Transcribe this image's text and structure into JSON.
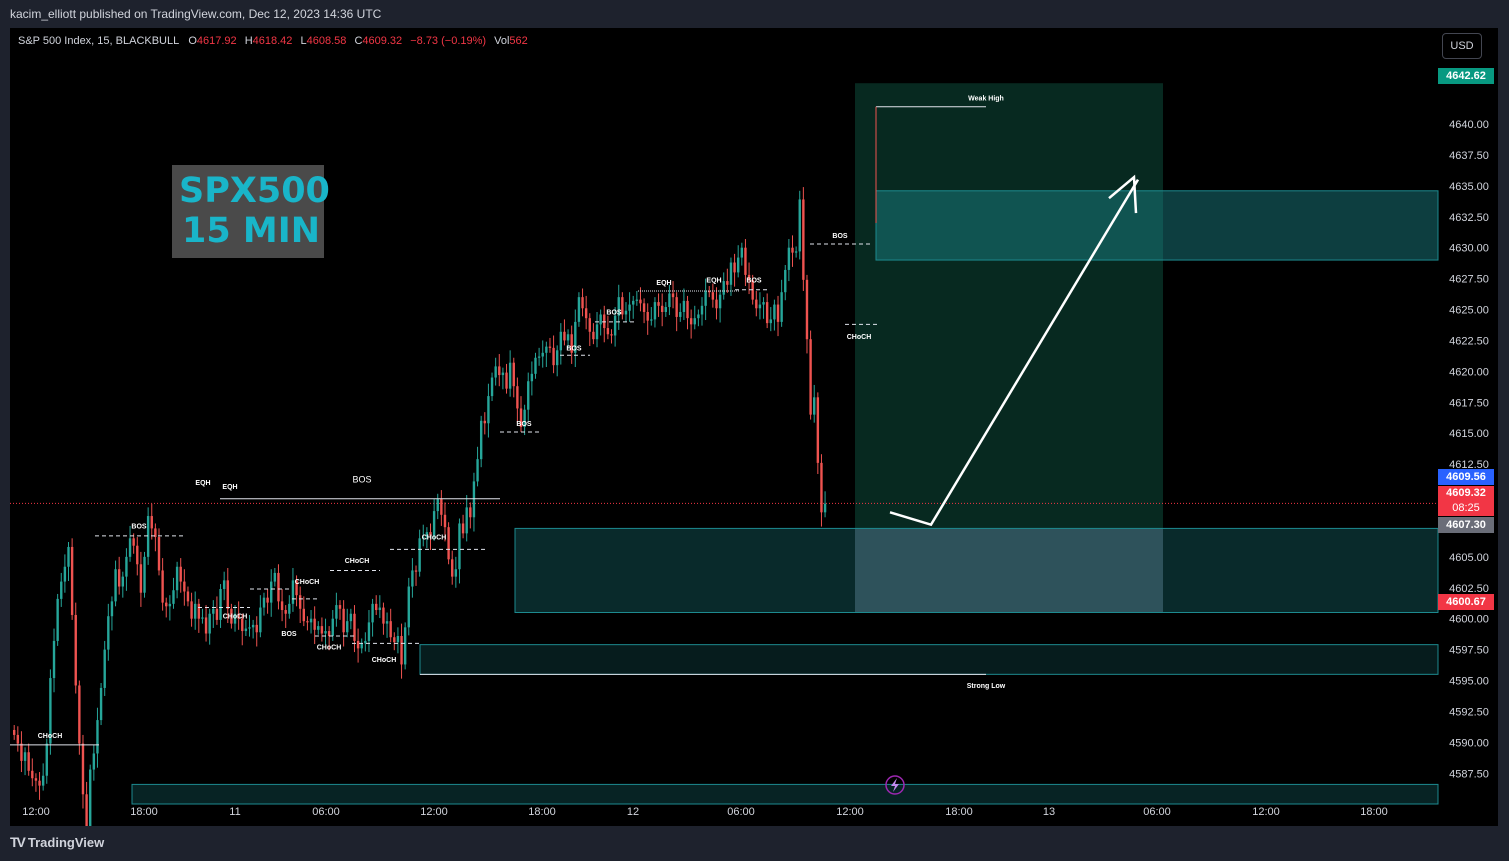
{
  "header": {
    "published": "kacim_elliott published on TradingView.com, Dec 12, 2023 14:36 UTC"
  },
  "legend": {
    "symbol": "S&P 500 Index, 15, BLACKBULL",
    "open_label": "O",
    "open": "4617.92",
    "high_label": "H",
    "high": "4618.42",
    "low_label": "L",
    "low": "4608.58",
    "close_label": "C",
    "close": "4609.32",
    "change": "−8.73 (−0.19%)",
    "vol_label": "Vol",
    "vol": "562"
  },
  "currency_button": "USD",
  "watermark": {
    "line1": "SPX500",
    "line2": "15 MIN"
  },
  "footer": {
    "brand": "TradingView"
  },
  "price_tags": {
    "top": "4642.62",
    "blue": "4609.56",
    "last_price": "4609.32",
    "countdown": "08:25",
    "gray": "4607.30",
    "red": "4600.67"
  },
  "colors": {
    "up": "#26a69a",
    "down": "#ef5350",
    "zone": "#1d8a8f",
    "green_box": "#0c4a3a",
    "gray_box": "#363a45",
    "accent_blue": "#2962ff"
  },
  "chart_data": {
    "type": "candlestick",
    "ylim": [
      4585.5,
      4645.5
    ],
    "y_ticks": [
      "4587.50",
      "4590.00",
      "4592.50",
      "4595.00",
      "4597.50",
      "4600.00",
      "4602.50",
      "4605.00",
      "4607.50",
      "4610.00",
      "4612.50",
      "4615.00",
      "4617.50",
      "4620.00",
      "4622.50",
      "4625.00",
      "4627.50",
      "4630.00",
      "4632.50",
      "4635.00",
      "4637.50",
      "4640.00"
    ],
    "x_ticks": [
      "12:00",
      "18:00",
      "11",
      "06:00",
      "12:00",
      "18:00",
      "12",
      "06:00",
      "12:00",
      "18:00",
      "13",
      "06:00",
      "12:00",
      "18:00"
    ],
    "closes": [
      4590.6,
      4589.9,
      4588.5,
      4589.2,
      4587.7,
      4587.1,
      4586.9,
      4586.5,
      4587.3,
      4589.9,
      4595.2,
      4598.2,
      4601.6,
      4603.0,
      4604.2,
      4605.8,
      4600.3,
      4594.6,
      4589.9,
      4585.8,
      4582.6,
      4587.8,
      4589.1,
      4591.8,
      4594.4,
      4597.5,
      4600.2,
      4601.4,
      4604.0,
      4602.6,
      4603.4,
      4605.0,
      4606.5,
      4605.9,
      4604.4,
      4602.1,
      4605.0,
      4608.3,
      4607.3,
      4606.6,
      4603.9,
      4601.3,
      4601.0,
      4601.2,
      4602.3,
      4604.2,
      4603.0,
      4602.2,
      4601.4,
      4600.0,
      4601.2,
      4600.0,
      4600.1,
      4598.8,
      4600.4,
      4600.8,
      4599.9,
      4602.4,
      4603.1,
      4600.8,
      4599.6,
      4600.4,
      4600.0,
      4599.0,
      4599.2,
      4599.3,
      4599.5,
      4598.9,
      4600.9,
      4601.7,
      4601.3,
      4603.0,
      4603.7,
      4601.4,
      4600.7,
      4600.4,
      4601.2,
      4603.1,
      4601.9,
      4600.8,
      4599.8,
      4599.7,
      4600.0,
      4599.1,
      4599.4,
      4598.8,
      4599.0,
      4598.6,
      4600.0,
      4601.1,
      4600.8,
      4598.9,
      4599.8,
      4600.4,
      4598.2,
      4597.6,
      4598.0,
      4598.2,
      4599.7,
      4601.2,
      4600.7,
      4600.9,
      4599.6,
      4599.8,
      4598.5,
      4598.1,
      4598.6,
      4596.3,
      4599.3,
      4602.6,
      4603.9,
      4603.8,
      4606.5,
      4606.6,
      4607.0,
      4606.7,
      4608.7,
      4609.7,
      4608.4,
      4607.4,
      4604.8,
      4603.4,
      4604.0,
      4607.7,
      4606.9,
      4609.0,
      4608.2,
      4611.1,
      4612.9,
      4616.0,
      4615.8,
      4618.0,
      4619.5,
      4620.4,
      4619.7,
      4619.9,
      4618.6,
      4620.7,
      4618.8,
      4617.0,
      4615.5,
      4616.9,
      4619.2,
      4619.8,
      4621.1,
      4621.2,
      4621.5,
      4622.0,
      4621.9,
      4620.5,
      4621.7,
      4623.2,
      4622.5,
      4623.0,
      4621.5,
      4624.0,
      4626.0,
      4625.1,
      4624.3,
      4623.2,
      4622.6,
      4623.8,
      4624.6,
      4623.5,
      4623.0,
      4622.9,
      4624.5,
      4626.0,
      4624.6,
      4624.9,
      4625.4,
      4625.7,
      4625.8,
      4625.5,
      4624.8,
      4624.1,
      4624.2,
      4625.6,
      4625.3,
      4624.8,
      4625.2,
      4626.3,
      4626.0,
      4624.4,
      4624.8,
      4625.7,
      4624.3,
      4623.8,
      4624.3,
      4624.6,
      4625.3,
      4626.5,
      4626.4,
      4625.8,
      4625.1,
      4626.2,
      4627.3,
      4627.0,
      4628.8,
      4628.0,
      4629.2,
      4630.0,
      4627.8,
      4627.4,
      4625.8,
      4625.1,
      4625.4,
      4625.6,
      4623.9,
      4624.2,
      4625.4,
      4624.0,
      4626.4,
      4628.2,
      4630.0,
      4629.6,
      4629.7,
      4633.9,
      4627.4,
      4622.6,
      4616.5,
      4617.9,
      4612.6,
      4608.6,
      4609.3
    ]
  },
  "annotations": {
    "choch_left": "CHoCH",
    "bos1": "BOS",
    "eqh1": "EQH",
    "eqh2": "EQH",
    "bos_main": "BOS",
    "choch2": "CHoCH",
    "bos2": "BOS",
    "choch3": "CHoCH",
    "choch4": "CHoCH",
    "choch5": "CHoCH",
    "choch6": "CHoCH",
    "choch7": "CHoCH",
    "bos3": "BOS",
    "bos4": "BOS",
    "bos5": "BOS",
    "eqh3": "EQH",
    "eqh4": "EQH",
    "bos6": "BOS",
    "bos7": "BOS",
    "choch8": "CHoCH",
    "weak_high": "Weak High",
    "strong_low": "Strong Low"
  }
}
